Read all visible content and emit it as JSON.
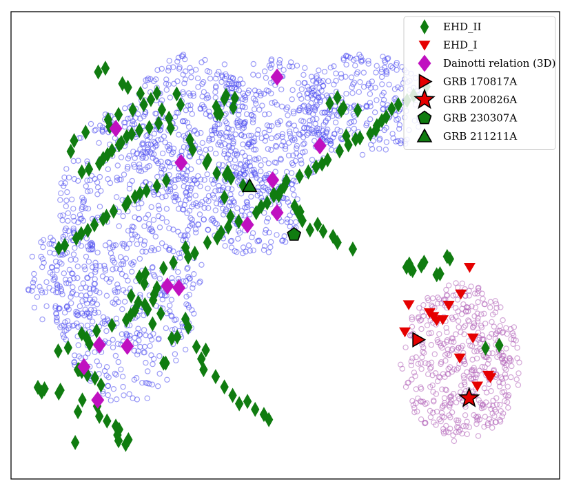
{
  "chart_data": {
    "type": "scatter",
    "title": "",
    "xlabel": "",
    "ylabel": "",
    "xlim": [
      0,
      100
    ],
    "ylim": [
      0,
      100
    ],
    "grid": false,
    "axes_ticks": false,
    "legend_position": "top-right",
    "background_clusters": [
      {
        "name": "",
        "color": "#4a4af0",
        "marker": "hollow-circle",
        "regions": [
          {
            "cx": 21,
            "cy": 48,
            "rx": 14,
            "ry": 32,
            "n": 650
          },
          {
            "cx": 33,
            "cy": 74,
            "rx": 12,
            "ry": 17,
            "n": 380
          },
          {
            "cx": 48,
            "cy": 76,
            "rx": 11,
            "ry": 14,
            "n": 300
          },
          {
            "cx": 64,
            "cy": 80,
            "rx": 12,
            "ry": 11,
            "n": 250
          },
          {
            "cx": 44,
            "cy": 57,
            "rx": 9,
            "ry": 9,
            "n": 170
          },
          {
            "cx": 10,
            "cy": 42,
            "rx": 7,
            "ry": 12,
            "n": 110
          }
        ]
      },
      {
        "name": "",
        "color": "#b060b8",
        "marker": "hollow-circle",
        "regions": [
          {
            "cx": 82,
            "cy": 25,
            "rx": 11,
            "ry": 17,
            "n": 480
          }
        ]
      }
    ],
    "series": [
      {
        "name": "EHD_II",
        "color": "#107c10",
        "marker": "thin-diamond",
        "x": [
          17.2,
          15.9,
          20.3,
          21.3,
          30.2,
          30.9,
          26.6,
          27.5,
          28.8,
          29.1,
          32.6,
          33.1,
          35.9,
          35.6,
          39.5,
          39.2,
          37.5,
          40.1,
          42.3,
          38.9,
          47.9,
          48.8,
          51.7,
          52.7,
          52.4,
          53.1,
          55.9,
          54.5,
          56.9,
          58.7,
          59.5,
          62.3,
          21.9,
          23.2,
          24.9,
          27.3,
          25.8,
          31.8,
          32.3,
          30.3,
          29.3,
          33.8,
          35.5,
          34.7,
          27.8,
          28.2,
          35.1,
          37.3,
          38.9,
          40.4,
          43.1,
          41.6,
          44.5,
          46.1,
          47.0,
          12.2,
          12.9,
          12.4,
          13.9,
          15.3,
          16.4,
          9.0,
          8.7,
          13.0,
          15.7,
          12.2,
          16.1,
          17.5,
          19.1,
          19.7,
          19.4,
          21.4,
          20.9,
          19.6,
          11.7,
          4.9,
          6.1,
          5.6,
          8.6,
          10.4,
          14.3,
          13.8,
          12.9,
          15.6,
          18.4,
          21.0,
          21.8,
          22.6,
          24.4,
          25.9,
          26.1,
          26.6,
          24.3,
          23.4,
          24.5,
          27.8,
          29.6,
          32.3,
          33.5,
          31.8,
          35.8,
          37.6,
          38.3,
          39.6,
          41.5,
          40.0,
          44.7,
          45.6,
          46.7,
          47.9,
          49.1,
          49.8,
          50.2,
          52.6,
          54.2,
          55.6,
          56.7,
          57.7,
          59.9,
          61.5,
          62.8,
          61.1,
          63.6,
          65.5,
          66.5,
          66.7,
          67.6,
          68.4,
          69.4,
          70.6,
          72.2,
          73.4,
          75.7,
          8.7,
          9.8,
          11.9,
          12.8,
          14.0,
          15.2,
          16.8,
          17.4,
          18.7,
          20.9,
          21.3,
          22.6,
          23.5,
          24.7,
          26.6,
          28.3,
          12.9,
          14.2,
          16.1,
          16.8,
          17.6,
          18.4,
          19.7,
          20.1,
          21.1,
          22.0,
          23.4,
          25.2,
          26.9,
          17.7,
          19.6,
          22.2,
          24.2,
          25.5,
          23.6,
          10.9,
          11.5,
          13.6,
          18.0,
          38.9,
          39.2,
          37.6,
          37.4,
          38.1,
          40.5,
          40.8,
          80.0,
          79.5,
          77.6,
          89.0,
          86.5,
          72.8,
          74.8,
          75.3,
          72.6,
          72.1,
          73.2,
          78.2,
          60.2,
          63.2,
          60.6,
          58.1,
          59.5
        ],
        "y": [
          87.9,
          87.1,
          84.6,
          83.8,
          82.4,
          80.1,
          82.6,
          79.0,
          77.2,
          75.1,
          72.6,
          70.5,
          68.3,
          67.6,
          65.7,
          65.1,
          65.4,
          64.4,
          62.8,
          60.3,
          61.0,
          60.7,
          58.4,
          57.2,
          56.9,
          55.3,
          54.5,
          53.3,
          53.0,
          51.9,
          50.6,
          49.2,
          39.2,
          37.8,
          36.3,
          35.4,
          33.2,
          34.2,
          32.5,
          30.4,
          30.1,
          28.3,
          27.6,
          25.7,
          24.8,
          24.8,
          23.4,
          21.9,
          19.7,
          17.9,
          16.6,
          16.1,
          14.9,
          13.8,
          12.7,
          23.4,
          23.0,
          23.4,
          22.3,
          21.6,
          20.1,
          19.0,
          18.4,
          16.9,
          15.6,
          14.4,
          13.4,
          12.4,
          11.3,
          10.6,
          9.4,
          8.4,
          7.4,
          8.2,
          7.8,
          19.6,
          19.3,
          18.6,
          27.4,
          28.1,
          28.9,
          30.2,
          31.1,
          31.7,
          32.9,
          34.0,
          35.1,
          36.1,
          37.3,
          38.3,
          39.5,
          40.9,
          41.8,
          43.2,
          44.0,
          45.1,
          46.3,
          47.5,
          48.3,
          49.5,
          50.6,
          51.6,
          52.8,
          53.9,
          55.1,
          56.2,
          57.0,
          58.3,
          59.1,
          60.6,
          61.6,
          62.6,
          63.8,
          64.8,
          65.7,
          66.8,
          67.4,
          68.3,
          70.2,
          71.5,
          72.7,
          73.4,
          73.0,
          73.9,
          74.7,
          75.6,
          76.7,
          77.5,
          79.2,
          80.1,
          81.0,
          82.1,
          84.0,
          49.4,
          50.0,
          51.5,
          52.5,
          53.2,
          54.4,
          55.6,
          56.2,
          57.3,
          58.6,
          59.3,
          60.4,
          61.1,
          61.7,
          62.7,
          63.9,
          65.7,
          66.3,
          67.5,
          68.6,
          69.4,
          70.3,
          71.5,
          72.0,
          73.3,
          73.8,
          74.6,
          75.2,
          76.1,
          76.9,
          78.0,
          79.0,
          80.1,
          81.2,
          82.5,
          70.1,
          72.4,
          74.2,
          75.4,
          81.3,
          82.1,
          78.2,
          79.7,
          78.1,
          79.5,
          81.5,
          47.1,
          47.6,
          43.7,
          28.6,
          28.0,
          45.0,
          45.6,
          46.4,
          46.0,
          45.3,
          44.6,
          43.9,
          78.9,
          78.9,
          79.5,
          80.4,
          81.6
        ]
      },
      {
        "name": "EHD_I",
        "color": "#e50000",
        "marker": "triangle-down",
        "x": [
          72.5,
          76.3,
          77.0,
          77.6,
          78.7,
          79.8,
          82.0,
          83.6,
          81.8,
          84.2,
          87.4,
          87.0,
          85.0,
          71.8
        ],
        "y": [
          37.3,
          35.6,
          34.8,
          33.9,
          34.1,
          37.2,
          39.6,
          45.3,
          25.9,
          30.2,
          21.7,
          22.2,
          19.9,
          31.5
        ]
      },
      {
        "name": "Dainotti relation (3D)",
        "color": "#c010c0",
        "marker": "diamond",
        "x": [
          19.1,
          31.0,
          48.5,
          56.3,
          47.7,
          48.5,
          43.1,
          28.5,
          30.6,
          16.1,
          21.2,
          13.3,
          15.8
        ],
        "y": [
          75.0,
          67.7,
          86.0,
          71.3,
          64.0,
          57.0,
          54.4,
          41.3,
          40.9,
          28.7,
          28.4,
          24.0,
          16.9
        ]
      },
      {
        "name": "GRB 170817A",
        "color": "#e50000",
        "marker": "triangle-right",
        "x": [
          74.2
        ],
        "y": [
          29.8
        ]
      },
      {
        "name": "GRB 200826A",
        "color": "#e50000",
        "marker": "star",
        "x": [
          83.5
        ],
        "y": [
          17.3
        ]
      },
      {
        "name": "GRB 230307A",
        "color": "#107c10",
        "marker": "pentagon",
        "x": [
          51.6
        ],
        "y": [
          52.3
        ]
      },
      {
        "name": "GRB 211211A",
        "color": "#107c10",
        "marker": "triangle-up",
        "x": [
          43.5
        ],
        "y": [
          62.7
        ]
      }
    ]
  }
}
